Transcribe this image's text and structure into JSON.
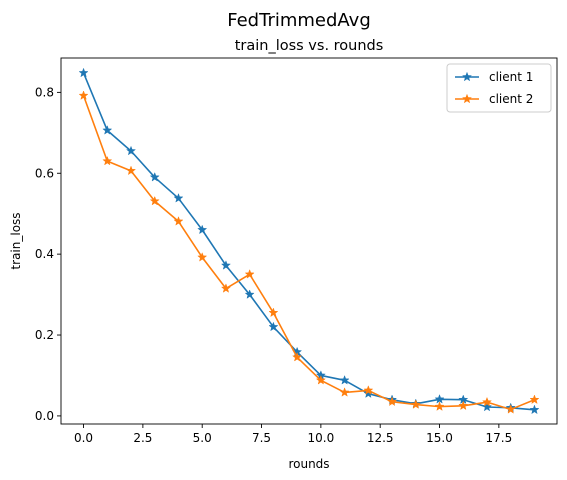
{
  "chart_data": {
    "type": "line",
    "suptitle": "FedTrimmedAvg",
    "title": "train_loss vs. rounds",
    "xlabel": "rounds",
    "ylabel": "train_loss",
    "xlim": [
      -0.95,
      19.95
    ],
    "ylim": [
      -0.02,
      0.885
    ],
    "xticks": [
      0.0,
      2.5,
      5.0,
      7.5,
      10.0,
      12.5,
      15.0,
      17.5
    ],
    "xtick_labels": [
      "0.0",
      "2.5",
      "5.0",
      "7.5",
      "10.0",
      "12.5",
      "15.0",
      "17.5"
    ],
    "yticks": [
      0.0,
      0.2,
      0.4,
      0.6,
      0.8
    ],
    "ytick_labels": [
      "0.0",
      "0.2",
      "0.4",
      "0.6",
      "0.8"
    ],
    "grid": false,
    "legend_position": "top-right",
    "x": [
      0,
      1,
      2,
      3,
      4,
      5,
      6,
      7,
      8,
      9,
      10,
      11,
      12,
      13,
      14,
      15,
      16,
      17,
      18,
      19
    ],
    "series": [
      {
        "name": "client 1",
        "color": "#1f77b4",
        "marker": "star",
        "values": [
          0.848,
          0.706,
          0.655,
          0.59,
          0.538,
          0.46,
          0.372,
          0.3,
          0.22,
          0.158,
          0.1,
          0.088,
          0.055,
          0.04,
          0.03,
          0.041,
          0.04,
          0.022,
          0.02,
          0.015
        ]
      },
      {
        "name": "client 2",
        "color": "#ff7f0e",
        "marker": "star",
        "values": [
          0.792,
          0.63,
          0.606,
          0.531,
          0.481,
          0.392,
          0.315,
          0.35,
          0.255,
          0.145,
          0.088,
          0.058,
          0.063,
          0.035,
          0.028,
          0.023,
          0.025,
          0.034,
          0.016,
          0.04
        ]
      }
    ]
  }
}
